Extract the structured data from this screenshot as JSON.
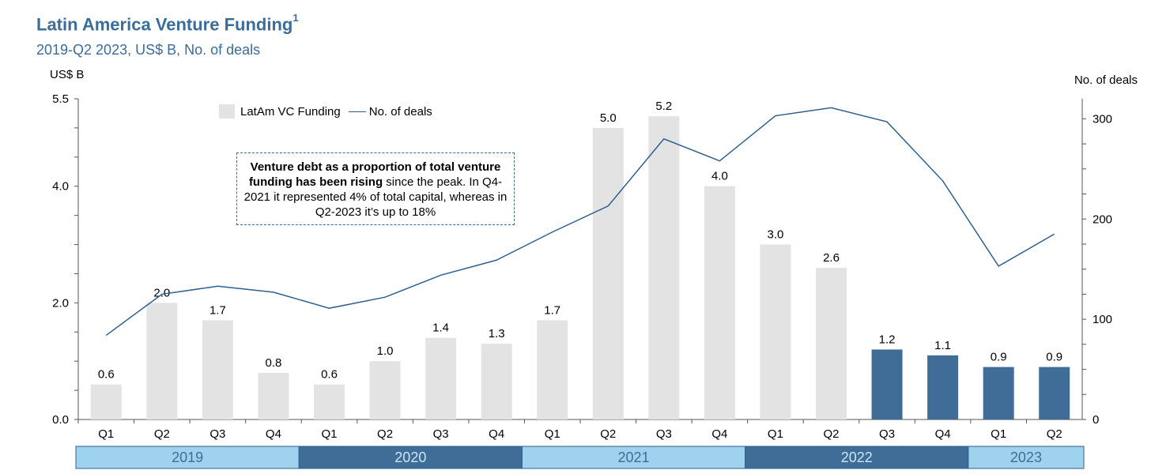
{
  "title": "Latin America Venture Funding",
  "title_superscript": "1",
  "subtitle": "2019-Q2 2023, US$ B, No. of deals",
  "annotation": {
    "bold": "Venture debt as a proportion of total venture funding has been rising",
    "rest": " since the peak. In Q4-2021 it represented 4% of total capital, whereas in Q2-2023 it’s up to 18%"
  },
  "colors": {
    "light_bar": "#e3e3e3",
    "dark_bar": "#3f6d98",
    "line": "#2f5f8e",
    "year_light": "#9fd2ec",
    "year_dark": "#3f6d98"
  },
  "chart_data": {
    "type": "bar",
    "title": "Latin America Venture Funding",
    "ylabel": "US$ B",
    "y2label": "No. of deals",
    "ylim": [
      0,
      5.5
    ],
    "yticks": [
      "0.0",
      "2.0",
      "4.0",
      "5.5"
    ],
    "y2lim": [
      0,
      320
    ],
    "y2ticks": [
      0,
      100,
      200,
      300
    ],
    "categories": [
      "Q1",
      "Q2",
      "Q3",
      "Q4",
      "Q1",
      "Q2",
      "Q3",
      "Q4",
      "Q1",
      "Q2",
      "Q3",
      "Q4",
      "Q1",
      "Q2",
      "Q3",
      "Q4",
      "Q1",
      "Q2"
    ],
    "years": [
      {
        "label": "2019",
        "quarters": 4
      },
      {
        "label": "2020",
        "quarters": 4
      },
      {
        "label": "2021",
        "quarters": 4
      },
      {
        "label": "2022",
        "quarters": 4
      },
      {
        "label": "2023",
        "quarters": 2
      }
    ],
    "legend_position": "top-left",
    "series": [
      {
        "name": "LatAm VC Funding",
        "type": "bar",
        "values": [
          0.6,
          2.0,
          1.7,
          0.8,
          0.6,
          1.0,
          1.4,
          1.3,
          1.7,
          5.0,
          5.2,
          4.0,
          3.0,
          2.6,
          1.2,
          1.1,
          0.9,
          0.9
        ],
        "labels": [
          "0.6",
          "2.0",
          "1.7",
          "0.8",
          "0.6",
          "1.0",
          "1.4",
          "1.3",
          "1.7",
          "5.0",
          "5.2",
          "4.0",
          "3.0",
          "2.6",
          "1.2",
          "1.1",
          "0.9",
          "0.9"
        ],
        "highlighted_from_index": 14
      },
      {
        "name": "No. of deals",
        "type": "line",
        "axis": "right",
        "values": [
          84,
          125,
          133,
          127,
          111,
          122,
          144,
          159,
          187,
          213,
          280,
          258,
          303,
          311,
          297,
          238,
          153,
          185
        ]
      }
    ]
  }
}
